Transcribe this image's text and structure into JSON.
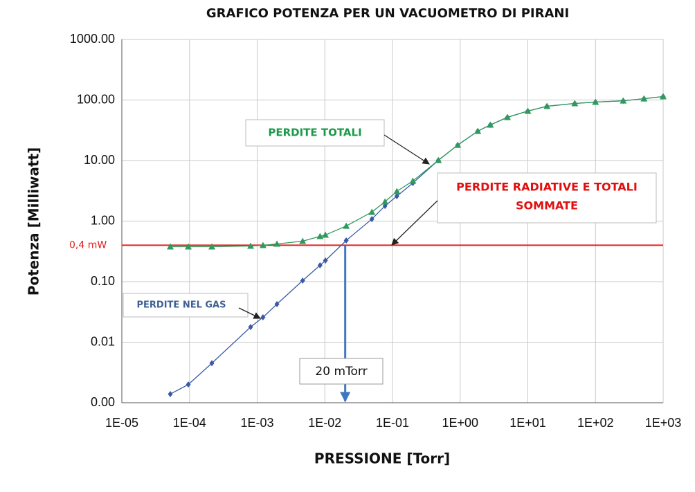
{
  "chart_data": {
    "type": "line",
    "title": "GRAFICO POTENZA PER UN VACUOMETRO DI PIRANI",
    "x_label": "PRESSIONE [Torr]",
    "y_label": "Potenza  [Milliwatt]",
    "log_x": true,
    "log_y": true,
    "grid": true,
    "xlim": [
      1e-05,
      1000
    ],
    "ylim": [
      0.001,
      1000
    ],
    "xticks": [
      {
        "value": 1e-05,
        "label": "1E-05"
      },
      {
        "value": 0.0001,
        "label": "1E-04"
      },
      {
        "value": 0.001,
        "label": "1E-03"
      },
      {
        "value": 0.01,
        "label": "1E-02"
      },
      {
        "value": 0.1,
        "label": "1E-01"
      },
      {
        "value": 1,
        "label": "1E+00"
      },
      {
        "value": 10,
        "label": "1E+01"
      },
      {
        "value": 100,
        "label": "1E+02"
      },
      {
        "value": 1000,
        "label": "1E+03"
      }
    ],
    "yticks": [
      {
        "value": 0.001,
        "label": "0.00"
      },
      {
        "value": 0.01,
        "label": "0.01"
      },
      {
        "value": 0.1,
        "label": "0.10"
      },
      {
        "value": 1,
        "label": "1.00"
      },
      {
        "value": 10,
        "label": "10.00"
      },
      {
        "value": 100,
        "label": "100.00"
      },
      {
        "value": 1000,
        "label": "1000.00"
      }
    ],
    "x": [
      5.2e-05,
      9.6e-05,
      0.000214,
      0.0008,
      0.00122,
      0.00196,
      0.0047,
      0.0085,
      0.0102,
      0.0207,
      0.0496,
      0.0775,
      0.116,
      0.2,
      0.476,
      0.92,
      1.82,
      2.79,
      5.0,
      10,
      19.2,
      49.4,
      100,
      257,
      521,
      1000
    ],
    "series": [
      {
        "name": "PERDITE NEL GAS",
        "color": "#3a5aa6",
        "marker": "diamond",
        "values": [
          0.00139,
          0.002,
          0.0045,
          0.0178,
          0.0258,
          0.0425,
          0.104,
          0.186,
          0.223,
          0.479,
          1.08,
          1.78,
          2.58,
          4.25,
          10.1,
          18,
          30.6,
          38.8,
          51.8,
          65.6,
          79,
          87.7,
          92.4,
          97,
          105,
          114
        ]
      },
      {
        "name": "PERDITE TOTALI",
        "color": "#2f9a5c",
        "marker": "triangle",
        "values": [
          0.378,
          0.378,
          0.378,
          0.388,
          0.398,
          0.42,
          0.466,
          0.56,
          0.59,
          0.83,
          1.41,
          2.09,
          3.1,
          4.6,
          10.1,
          18,
          30.6,
          38.8,
          51.8,
          65.6,
          79,
          87.7,
          92.4,
          97,
          105,
          114
        ]
      }
    ],
    "reference_line": {
      "value": 0.4,
      "label": "0,4 mW",
      "color": "#e02020",
      "name": [
        "PERDITE RADIATIVE E TOTALI",
        "SOMMATE"
      ]
    },
    "marker_line": {
      "value": 0.02,
      "label": "20 mTorr",
      "color": "#3d78c0"
    }
  }
}
